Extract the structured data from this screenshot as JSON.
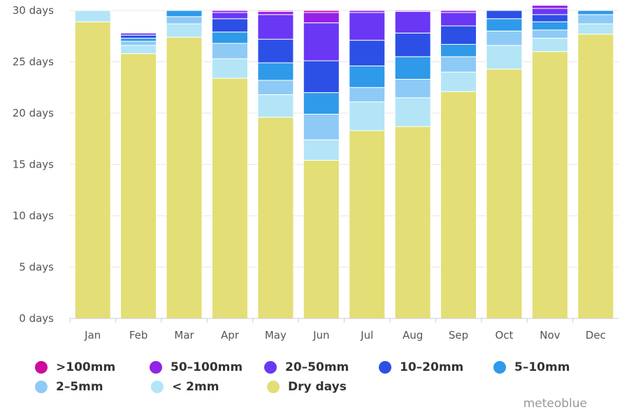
{
  "chart_data": {
    "type": "bar",
    "stacked": true,
    "categories": [
      "Jan",
      "Feb",
      "Mar",
      "Apr",
      "May",
      "Jun",
      "Jul",
      "Aug",
      "Sep",
      "Oct",
      "Nov",
      "Dec"
    ],
    "ylim": [
      0,
      30
    ],
    "yticks": [
      0,
      5,
      10,
      15,
      20,
      25,
      30
    ],
    "ytick_labels": [
      "0 days",
      "5 days",
      "10 days",
      "15 days",
      "20 days",
      "25 days",
      "30 days"
    ],
    "grid": true,
    "legend_position": "bottom",
    "series": [
      {
        "name": "Dry days",
        "color": "#e3de75",
        "values": [
          28.9,
          25.8,
          27.4,
          23.4,
          19.6,
          15.4,
          18.3,
          18.7,
          22.1,
          24.3,
          26.0,
          27.7
        ]
      },
      {
        "name": "< 2mm",
        "color": "#b3e5f7",
        "values": [
          1.1,
          0.8,
          1.3,
          1.9,
          2.2,
          2.0,
          2.8,
          2.8,
          1.9,
          2.3,
          1.3,
          1.0
        ]
      },
      {
        "name": "2–5mm",
        "color": "#8ecaf6",
        "values": [
          0.0,
          0.4,
          0.7,
          1.5,
          1.4,
          2.5,
          1.4,
          1.8,
          1.5,
          1.4,
          0.8,
          0.9
        ]
      },
      {
        "name": "5–10mm",
        "color": "#2e9ae9",
        "values": [
          0.0,
          0.3,
          0.6,
          1.1,
          1.7,
          2.1,
          2.1,
          2.2,
          1.2,
          1.2,
          0.8,
          0.4
        ]
      },
      {
        "name": "10–20mm",
        "color": "#2c50e6",
        "values": [
          0.0,
          0.3,
          0.0,
          1.3,
          2.3,
          3.1,
          2.5,
          2.3,
          1.8,
          0.8,
          0.7,
          0.0
        ]
      },
      {
        "name": "20–50mm",
        "color": "#6a37f5",
        "values": [
          0.0,
          0.2,
          0.0,
          0.6,
          2.4,
          3.7,
          2.7,
          2.1,
          1.3,
          0.0,
          0.6,
          0.0
        ]
      },
      {
        "name": "50–100mm",
        "color": "#9421e6",
        "values": [
          0.0,
          0.0,
          0.0,
          0.2,
          0.3,
          1.0,
          0.2,
          0.1,
          0.2,
          0.0,
          0.3,
          0.0
        ]
      },
      {
        "name": ">100mm",
        "color": "#cc0c9b",
        "values": [
          0.0,
          0.0,
          0.0,
          0.0,
          0.1,
          0.2,
          0.0,
          0.0,
          0.0,
          0.0,
          0.0,
          0.0
        ]
      }
    ]
  },
  "legend": [
    [
      {
        "label": ">100mm",
        "color": "#cc0c9b"
      },
      {
        "label": "50–100mm",
        "color": "#9421e6"
      },
      {
        "label": "20–50mm",
        "color": "#6a37f5"
      },
      {
        "label": "10–20mm",
        "color": "#2c50e6"
      },
      {
        "label": "5–10mm",
        "color": "#2e9ae9"
      }
    ],
    [
      {
        "label": "2–5mm",
        "color": "#8ecaf6"
      },
      {
        "label": "< 2mm",
        "color": "#b3e5f7"
      },
      {
        "label": "Dry days",
        "color": "#e3de75"
      }
    ]
  ],
  "credit": "meteoblue"
}
